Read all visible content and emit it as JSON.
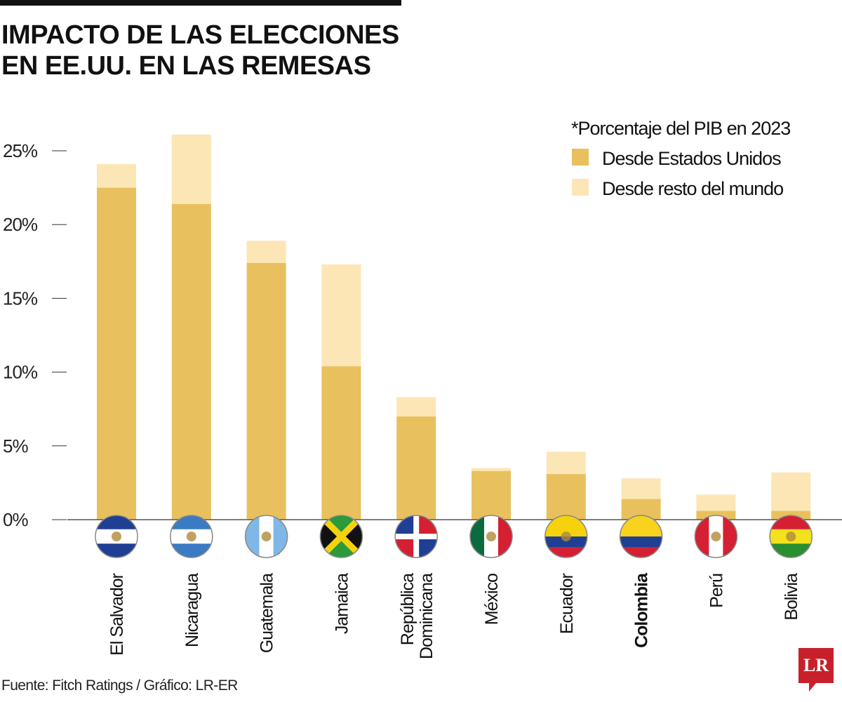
{
  "title_lines": [
    "IMPACTO DE LAS ELECCIONES",
    "EN EE.UU. EN LAS REMESAS"
  ],
  "footer": "Fuente: Fitch Ratings / Gráfico: LR-ER",
  "logo": "LR",
  "chart_data": {
    "type": "bar",
    "stacked": true,
    "title": "IMPACTO DE LAS ELECCIONES EN EE.UU. EN LAS REMESAS",
    "legend_title": "*Porcentaje del PIB en 2023",
    "legend_position": "top-right",
    "categories": [
      "El Salvador",
      "Nicaragua",
      "Guatemala",
      "Jamaica",
      "República Dominicana",
      "México",
      "Ecuador",
      "Colombia",
      "Perú",
      "Bolivia"
    ],
    "category_label_lines": [
      [
        "El Salvador"
      ],
      [
        "Nicaragua"
      ],
      [
        "Guatemala"
      ],
      [
        "Jamaica"
      ],
      [
        "República",
        "Dominicana"
      ],
      [
        "México"
      ],
      [
        "Ecuador"
      ],
      [
        "Colombia"
      ],
      [
        "Perú"
      ],
      [
        "Bolivia"
      ]
    ],
    "highlighted_category": "Colombia",
    "flag_icons": [
      "el-salvador-flag-icon",
      "nicaragua-flag-icon",
      "guatemala-flag-icon",
      "jamaica-flag-icon",
      "dominican-republic-flag-icon",
      "mexico-flag-icon",
      "ecuador-flag-icon",
      "colombia-flag-icon",
      "peru-flag-icon",
      "bolivia-flag-icon"
    ],
    "series": [
      {
        "name": "Desde Estados Unidos",
        "color": "#e8c15e",
        "values": [
          22.5,
          21.4,
          17.4,
          10.4,
          7.0,
          3.3,
          3.1,
          1.4,
          0.6,
          0.6
        ]
      },
      {
        "name": "Desde resto del mundo",
        "color": "#fde6b5",
        "values": [
          1.6,
          4.7,
          1.5,
          6.9,
          1.3,
          0.2,
          1.5,
          1.4,
          1.1,
          2.6
        ]
      }
    ],
    "yticks": [
      0,
      5,
      10,
      15,
      20,
      25
    ],
    "ytick_labels": [
      "0%",
      "5%",
      "10%",
      "15%",
      "20%",
      "25%"
    ],
    "ylim": [
      0,
      26.5
    ],
    "grid": false
  }
}
